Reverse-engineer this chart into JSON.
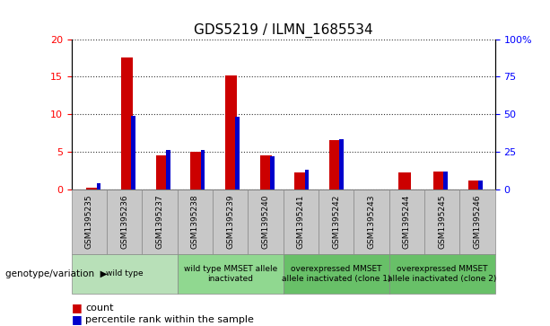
{
  "title": "GDS5219 / ILMN_1685534",
  "samples": [
    "GSM1395235",
    "GSM1395236",
    "GSM1395237",
    "GSM1395238",
    "GSM1395239",
    "GSM1395240",
    "GSM1395241",
    "GSM1395242",
    "GSM1395243",
    "GSM1395244",
    "GSM1395245",
    "GSM1395246"
  ],
  "counts": [
    0.2,
    17.5,
    4.5,
    5.0,
    15.2,
    4.5,
    2.2,
    6.5,
    0.0,
    2.2,
    2.3,
    1.2
  ],
  "percentiles": [
    4.0,
    49.0,
    26.0,
    26.0,
    48.0,
    22.0,
    13.0,
    33.0,
    0.0,
    0.0,
    12.0,
    6.0
  ],
  "ylim_left": [
    0,
    20
  ],
  "ylim_right": [
    0,
    100
  ],
  "yticks_left": [
    0,
    5,
    10,
    15,
    20
  ],
  "yticks_right": [
    0,
    25,
    50,
    75,
    100
  ],
  "yticklabels_right": [
    "0",
    "25",
    "50",
    "75",
    "100%"
  ],
  "bar_color_count": "#cc0000",
  "bar_color_pct": "#0000cc",
  "group_labels": [
    "wild type",
    "wild type MMSET allele\ninactivated",
    "overexpressed MMSET\nallele inactivated (clone 1)",
    "overexpressed MMSET\nallele inactivated (clone 2)"
  ],
  "group_ranges": [
    [
      0,
      3
    ],
    [
      3,
      6
    ],
    [
      6,
      9
    ],
    [
      9,
      12
    ]
  ],
  "group_colors": [
    "#b8e0b8",
    "#90d890",
    "#68c068",
    "#68c068"
  ],
  "genotype_label": "genotype/variation",
  "legend_count_label": "count",
  "legend_pct_label": "percentile rank within the sample",
  "sample_cell_color": "#c8c8c8",
  "cell_edge_color": "#888888"
}
